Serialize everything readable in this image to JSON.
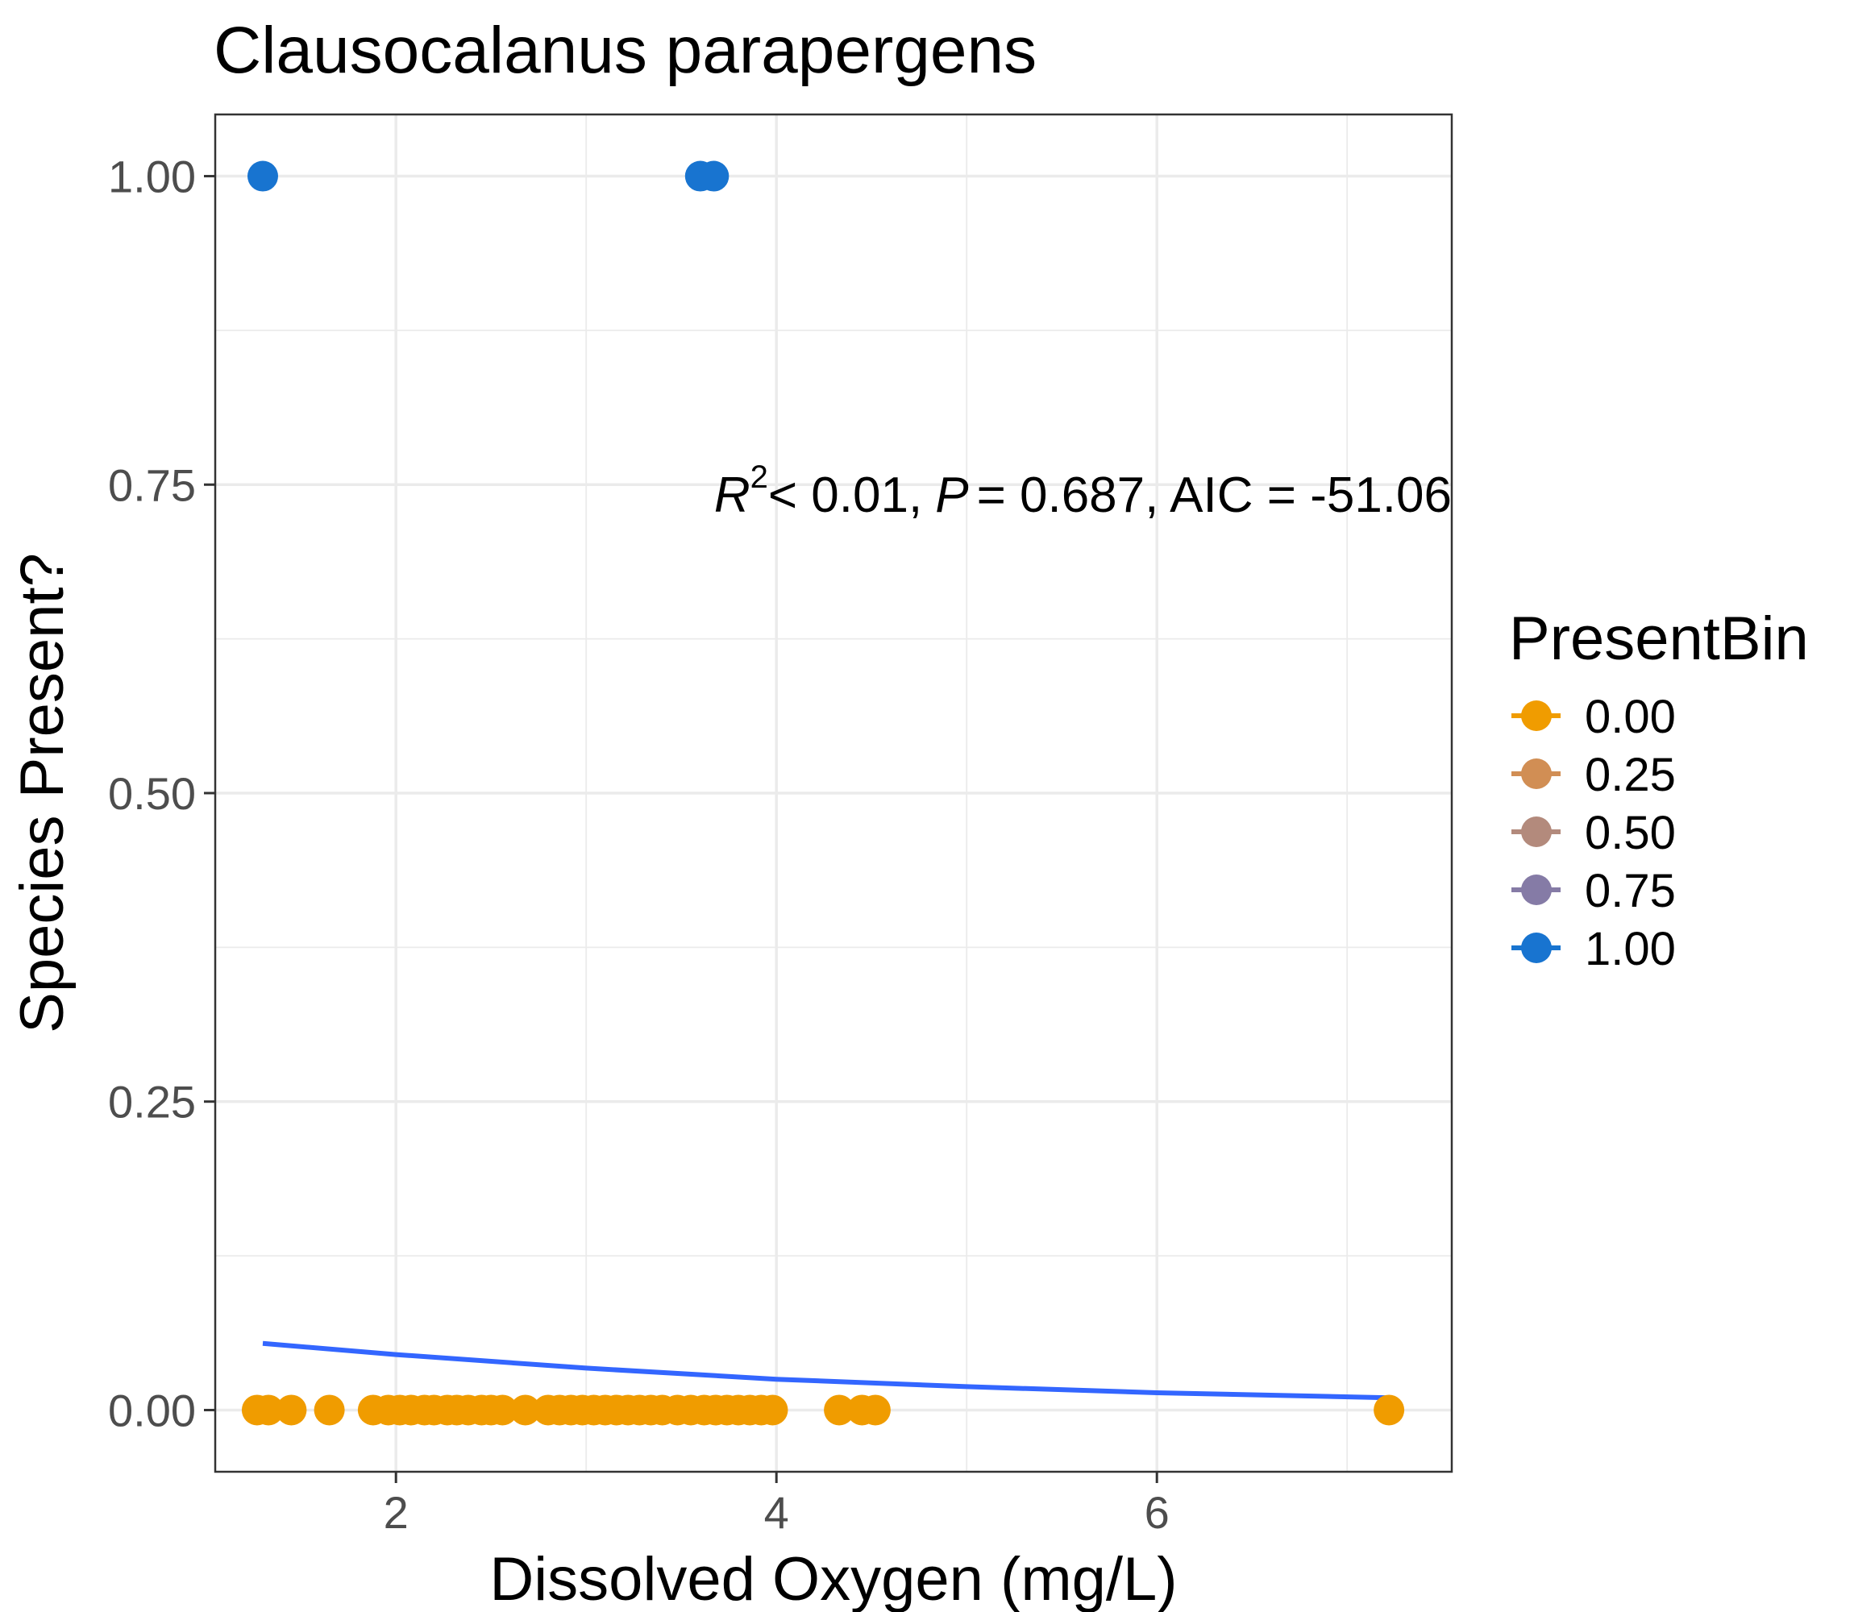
{
  "chart_data": {
    "type": "scatter",
    "title": "Clausocalanus parapergens",
    "xlabel": "Dissolved Oxygen (mg/L)",
    "ylabel": "Species Present?",
    "xlim": [
      1.05,
      7.55
    ],
    "ylim": [
      -0.05,
      1.05
    ],
    "x_ticks": [
      2,
      4,
      6
    ],
    "x_tick_labels": [
      "2",
      "4",
      "6"
    ],
    "y_ticks": [
      0,
      0.25,
      0.5,
      0.75,
      1
    ],
    "y_tick_labels": [
      "0.00",
      "0.25",
      "0.50",
      "0.75",
      "1.00"
    ],
    "grid": true,
    "legend_position": "right",
    "annotation": {
      "r2_symbol": "R",
      "r2_superscript": "2",
      "r2_text": "< 0.01,",
      "p_symbol": "P",
      "p_text": "= 0.687, AIC = -51.06"
    },
    "legend": {
      "title": "PresentBin",
      "entries": [
        {
          "label": "0.00",
          "color": "#f09c00"
        },
        {
          "label": "0.25",
          "color": "#d18e54"
        },
        {
          "label": "0.50",
          "color": "#b38a7c"
        },
        {
          "label": "0.75",
          "color": "#857ba6"
        },
        {
          "label": "1.00",
          "color": "#1874d0"
        }
      ]
    },
    "series": [
      {
        "present_bin": 0,
        "color": "#f09c00",
        "points": [
          [
            1.27,
            0
          ],
          [
            1.33,
            0
          ],
          [
            1.45,
            0
          ],
          [
            1.65,
            0
          ],
          [
            1.88,
            0
          ],
          [
            1.96,
            0
          ],
          [
            2.02,
            0
          ],
          [
            2.08,
            0
          ],
          [
            2.15,
            0
          ],
          [
            2.2,
            0
          ],
          [
            2.27,
            0
          ],
          [
            2.32,
            0
          ],
          [
            2.38,
            0
          ],
          [
            2.45,
            0
          ],
          [
            2.5,
            0
          ],
          [
            2.56,
            0
          ],
          [
            2.68,
            0
          ],
          [
            2.8,
            0
          ],
          [
            2.86,
            0
          ],
          [
            2.92,
            0
          ],
          [
            2.98,
            0
          ],
          [
            3.04,
            0
          ],
          [
            3.1,
            0
          ],
          [
            3.16,
            0
          ],
          [
            3.22,
            0
          ],
          [
            3.28,
            0
          ],
          [
            3.34,
            0
          ],
          [
            3.4,
            0
          ],
          [
            3.48,
            0
          ],
          [
            3.55,
            0
          ],
          [
            3.62,
            0
          ],
          [
            3.68,
            0
          ],
          [
            3.74,
            0
          ],
          [
            3.8,
            0
          ],
          [
            3.86,
            0
          ],
          [
            3.92,
            0
          ],
          [
            3.98,
            0
          ],
          [
            4.33,
            0
          ],
          [
            4.45,
            0
          ],
          [
            4.52,
            0
          ],
          [
            7.22,
            0
          ]
        ]
      },
      {
        "present_bin": 1,
        "color": "#1874d0",
        "points": [
          [
            1.3,
            1
          ],
          [
            3.6,
            1
          ],
          [
            3.67,
            1
          ]
        ]
      }
    ],
    "fit_line": {
      "color": "#3366ff",
      "points": [
        [
          1.3,
          0.054
        ],
        [
          2,
          0.045
        ],
        [
          3,
          0.034
        ],
        [
          4,
          0.025
        ],
        [
          5,
          0.019
        ],
        [
          6,
          0.014
        ],
        [
          7.2,
          0.01
        ]
      ]
    }
  }
}
